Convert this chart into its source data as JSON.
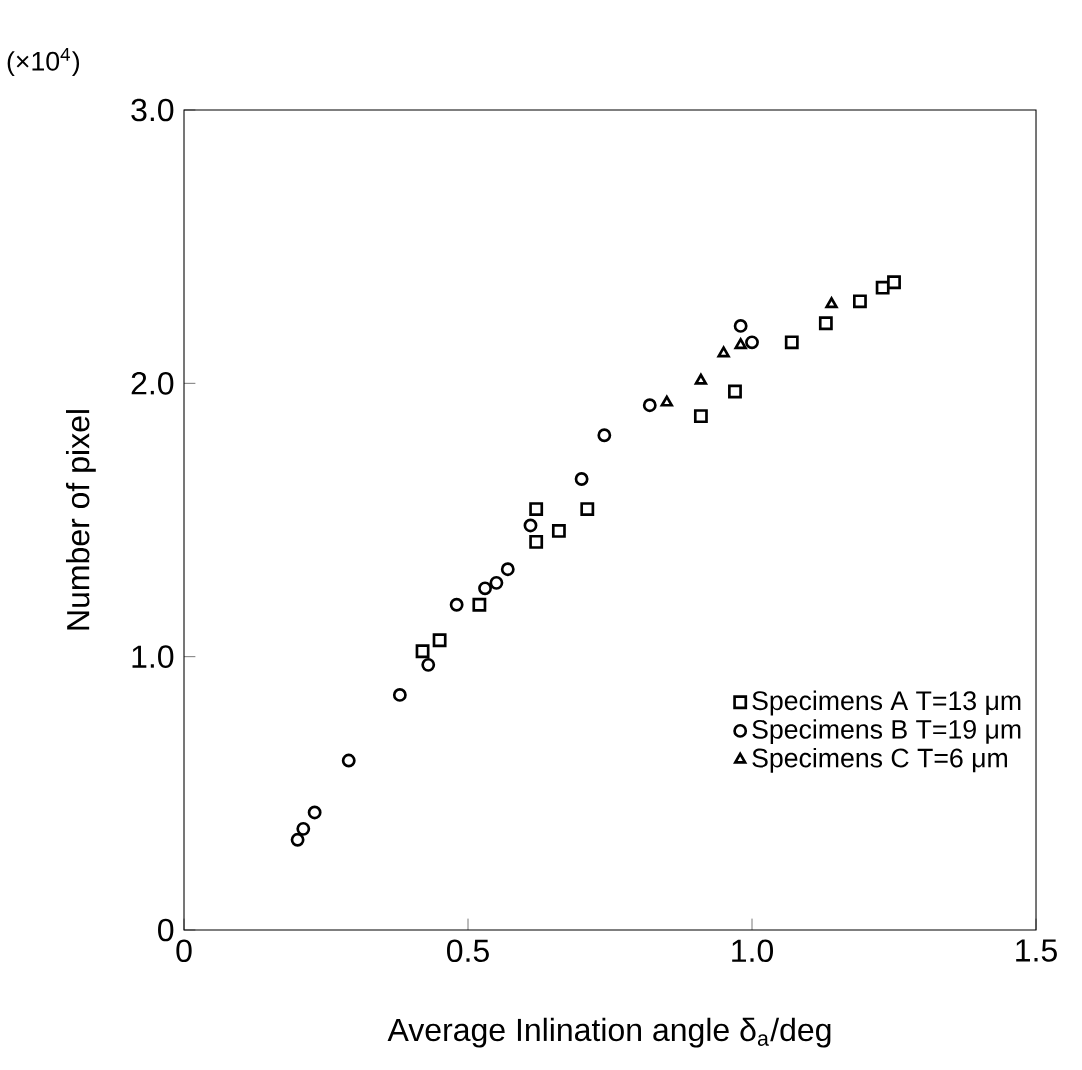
{
  "chart_data": {
    "type": "scatter",
    "xlabel": "Average Inlination angle δ$_{a}$/deg",
    "ylabel": "Number of pixel",
    "annotations": [
      "(×10$^{4}$)"
    ],
    "xlim": [
      0,
      1.5
    ],
    "ylim": [
      0,
      3.0
    ],
    "xticks": [
      0,
      0.5,
      {
        "value": 1.0,
        "label": "1.0"
      },
      1.5
    ],
    "yticks": [
      0,
      {
        "value": 1.0,
        "label": "1.0"
      },
      {
        "value": 2.0,
        "label": "2.0"
      },
      {
        "value": 3.0,
        "label": "3.0"
      }
    ],
    "grid": false,
    "legend": "bottom right",
    "series": [
      {
        "name": "Specimens A   T=13 μm",
        "color": "#000000",
        "marker": "square",
        "x": [
          0.42,
          0.45,
          0.52,
          0.62,
          0.62,
          0.66,
          0.71,
          0.91,
          0.97,
          1.07,
          1.13,
          1.19,
          1.23,
          1.25
        ],
        "values": [
          1.02,
          1.06,
          1.19,
          1.54,
          1.42,
          1.46,
          1.54,
          1.88,
          1.97,
          2.15,
          2.22,
          2.3,
          2.35,
          2.37
        ]
      },
      {
        "name": "Specimens B   T=19 μm",
        "color": "#000000",
        "marker": "circle",
        "x": [
          0.2,
          0.21,
          0.23,
          0.29,
          0.38,
          0.43,
          0.48,
          0.53,
          0.55,
          0.57,
          0.61,
          0.7,
          0.74,
          0.82,
          0.98,
          1.0
        ],
        "values": [
          0.33,
          0.37,
          0.43,
          0.62,
          0.86,
          0.97,
          1.19,
          1.25,
          1.27,
          1.32,
          1.48,
          1.65,
          1.81,
          1.92,
          2.21,
          2.15
        ]
      },
      {
        "name": "Specimens C   T=6  μm",
        "color": "#000000",
        "marker": "triangle",
        "x": [
          0.85,
          0.91,
          0.95,
          0.98,
          1.14
        ],
        "values": [
          1.93,
          2.01,
          2.11,
          2.14,
          2.29
        ]
      }
    ]
  }
}
